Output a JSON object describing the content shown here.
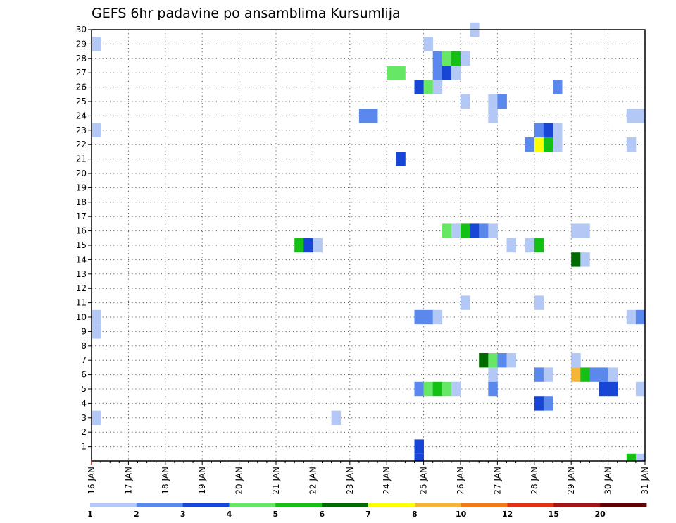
{
  "chart_data": {
    "type": "heatmap",
    "title": "GEFS 6hr padavine po ansamblima Kursumlija",
    "y_ticks": [
      "1",
      "2",
      "3",
      "4",
      "5",
      "6",
      "7",
      "8",
      "9",
      "10",
      "11",
      "12",
      "13",
      "14",
      "15",
      "16",
      "17",
      "18",
      "19",
      "20",
      "21",
      "22",
      "23",
      "24",
      "25",
      "26",
      "27",
      "28",
      "29",
      "30"
    ],
    "x_ticks": [
      "16 JAN",
      "17 JAN",
      "18 JAN",
      "19 JAN",
      "20 JAN",
      "21 JAN",
      "22 JAN",
      "23 JAN",
      "24 JAN",
      "25 JAN",
      "26 JAN",
      "27 JAN",
      "28 JAN",
      "29 JAN",
      "30 JAN",
      "31 JAN"
    ],
    "x_range": [
      "16 JAN 00Z",
      "31 JAN 00Z"
    ],
    "y_range": [
      0,
      30
    ],
    "grid": "dotted",
    "legend": {
      "placement": "bottom",
      "labels": [
        "1",
        "2",
        "3",
        "4",
        "5",
        "6",
        "7",
        "8",
        "10",
        "12",
        "15",
        "20"
      ],
      "colors": [
        "#b4c8f6",
        "#5a88ec",
        "#1746d6",
        "#66e866",
        "#14c014",
        "#006a00",
        "#ffff00",
        "#f5b638",
        "#f57b14",
        "#e03214",
        "#a41414",
        "#600000"
      ]
    },
    "cells": [
      {
        "step": 0,
        "member": 29,
        "value": 1
      },
      {
        "step": 0,
        "member": 23,
        "value": 1
      },
      {
        "step": 0,
        "member": 10,
        "value": 1
      },
      {
        "step": 0,
        "member": 9,
        "value": 1
      },
      {
        "step": 0,
        "member": 3,
        "value": 1
      },
      {
        "step": 22,
        "member": 15,
        "value": 5
      },
      {
        "step": 23,
        "member": 15,
        "value": 3
      },
      {
        "step": 24,
        "member": 15,
        "value": 1
      },
      {
        "step": 26,
        "member": 3,
        "value": 1
      },
      {
        "step": 29,
        "member": 24,
        "value": 2
      },
      {
        "step": 30,
        "member": 24,
        "value": 2
      },
      {
        "step": 32,
        "member": 27,
        "value": 4
      },
      {
        "step": 33,
        "member": 27,
        "value": 4
      },
      {
        "step": 33,
        "member": 21,
        "value": 3
      },
      {
        "step": 35,
        "member": 26,
        "value": 3
      },
      {
        "step": 35,
        "member": 10,
        "value": 2
      },
      {
        "step": 35,
        "member": 5,
        "value": 2
      },
      {
        "step": 35,
        "member": 1,
        "value": 3
      },
      {
        "step": 36,
        "member": 29,
        "value": 1
      },
      {
        "step": 36,
        "member": 26,
        "value": 4
      },
      {
        "step": 36,
        "member": 10,
        "value": 2
      },
      {
        "step": 36,
        "member": 5,
        "value": 4
      },
      {
        "step": 37,
        "member": 28,
        "value": 2
      },
      {
        "step": 37,
        "member": 27,
        "value": 2
      },
      {
        "step": 37,
        "member": 26,
        "value": 1
      },
      {
        "step": 37,
        "member": 10,
        "value": 1
      },
      {
        "step": 37,
        "member": 5,
        "value": 5
      },
      {
        "step": 38,
        "member": 28,
        "value": 4
      },
      {
        "step": 38,
        "member": 27,
        "value": 3
      },
      {
        "step": 38,
        "member": 16,
        "value": 4
      },
      {
        "step": 38,
        "member": 5,
        "value": 4
      },
      {
        "step": 39,
        "member": 28,
        "value": 5
      },
      {
        "step": 39,
        "member": 27,
        "value": 1
      },
      {
        "step": 39,
        "member": 16,
        "value": 1
      },
      {
        "step": 39,
        "member": 5,
        "value": 1
      },
      {
        "step": 40,
        "member": 28,
        "value": 1
      },
      {
        "step": 40,
        "member": 25,
        "value": 1
      },
      {
        "step": 40,
        "member": 16,
        "value": 5
      },
      {
        "step": 40,
        "member": 11,
        "value": 1
      },
      {
        "step": 41,
        "member": 30,
        "value": 1
      },
      {
        "step": 41,
        "member": 16,
        "value": 3
      },
      {
        "step": 42,
        "member": 16,
        "value": 2
      },
      {
        "step": 42,
        "member": 7,
        "value": 6
      },
      {
        "step": 43,
        "member": 25,
        "value": 1
      },
      {
        "step": 43,
        "member": 24,
        "value": 1
      },
      {
        "step": 43,
        "member": 16,
        "value": 1
      },
      {
        "step": 43,
        "member": 7,
        "value": 4
      },
      {
        "step": 43,
        "member": 6,
        "value": 1
      },
      {
        "step": 43,
        "member": 5,
        "value": 2
      },
      {
        "step": 44,
        "member": 25,
        "value": 2
      },
      {
        "step": 44,
        "member": 7,
        "value": 2
      },
      {
        "step": 45,
        "member": 15,
        "value": 1
      },
      {
        "step": 45,
        "member": 7,
        "value": 1
      },
      {
        "step": 47,
        "member": 22,
        "value": 2
      },
      {
        "step": 47,
        "member": 15,
        "value": 1
      },
      {
        "step": 48,
        "member": 23,
        "value": 2
      },
      {
        "step": 48,
        "member": 22,
        "value": 7
      },
      {
        "step": 48,
        "member": 15,
        "value": 5
      },
      {
        "step": 48,
        "member": 11,
        "value": 1
      },
      {
        "step": 48,
        "member": 6,
        "value": 2
      },
      {
        "step": 48,
        "member": 4,
        "value": 3
      },
      {
        "step": 49,
        "member": 23,
        "value": 3
      },
      {
        "step": 49,
        "member": 22,
        "value": 5
      },
      {
        "step": 49,
        "member": 6,
        "value": 1
      },
      {
        "step": 49,
        "member": 4,
        "value": 2
      },
      {
        "step": 50,
        "member": 26,
        "value": 2
      },
      {
        "step": 50,
        "member": 23,
        "value": 1
      },
      {
        "step": 50,
        "member": 22,
        "value": 1
      },
      {
        "step": 52,
        "member": 16,
        "value": 1
      },
      {
        "step": 52,
        "member": 14,
        "value": 6
      },
      {
        "step": 52,
        "member": 7,
        "value": 1
      },
      {
        "step": 52,
        "member": 6,
        "value": 8
      },
      {
        "step": 53,
        "member": 16,
        "value": 1
      },
      {
        "step": 53,
        "member": 14,
        "value": 1
      },
      {
        "step": 53,
        "member": 6,
        "value": 5
      },
      {
        "step": 54,
        "member": 6,
        "value": 2
      },
      {
        "step": 55,
        "member": 6,
        "value": 2
      },
      {
        "step": 55,
        "member": 5,
        "value": 3
      },
      {
        "step": 56,
        "member": 6,
        "value": 1
      },
      {
        "step": 56,
        "member": 5,
        "value": 3
      },
      {
        "step": 58,
        "member": 24,
        "value": 1
      },
      {
        "step": 58,
        "member": 22,
        "value": 1
      },
      {
        "step": 58,
        "member": 10,
        "value": 1
      },
      {
        "step": 59,
        "member": 24,
        "value": 1
      },
      {
        "step": 59,
        "member": 10,
        "value": 2
      },
      {
        "step": 59,
        "member": 5,
        "value": 1
      }
    ],
    "bottom_marks": [
      {
        "step": 35,
        "value": 3
      },
      {
        "step": 58,
        "value": 5
      },
      {
        "step": 59,
        "value": 1
      }
    ]
  }
}
